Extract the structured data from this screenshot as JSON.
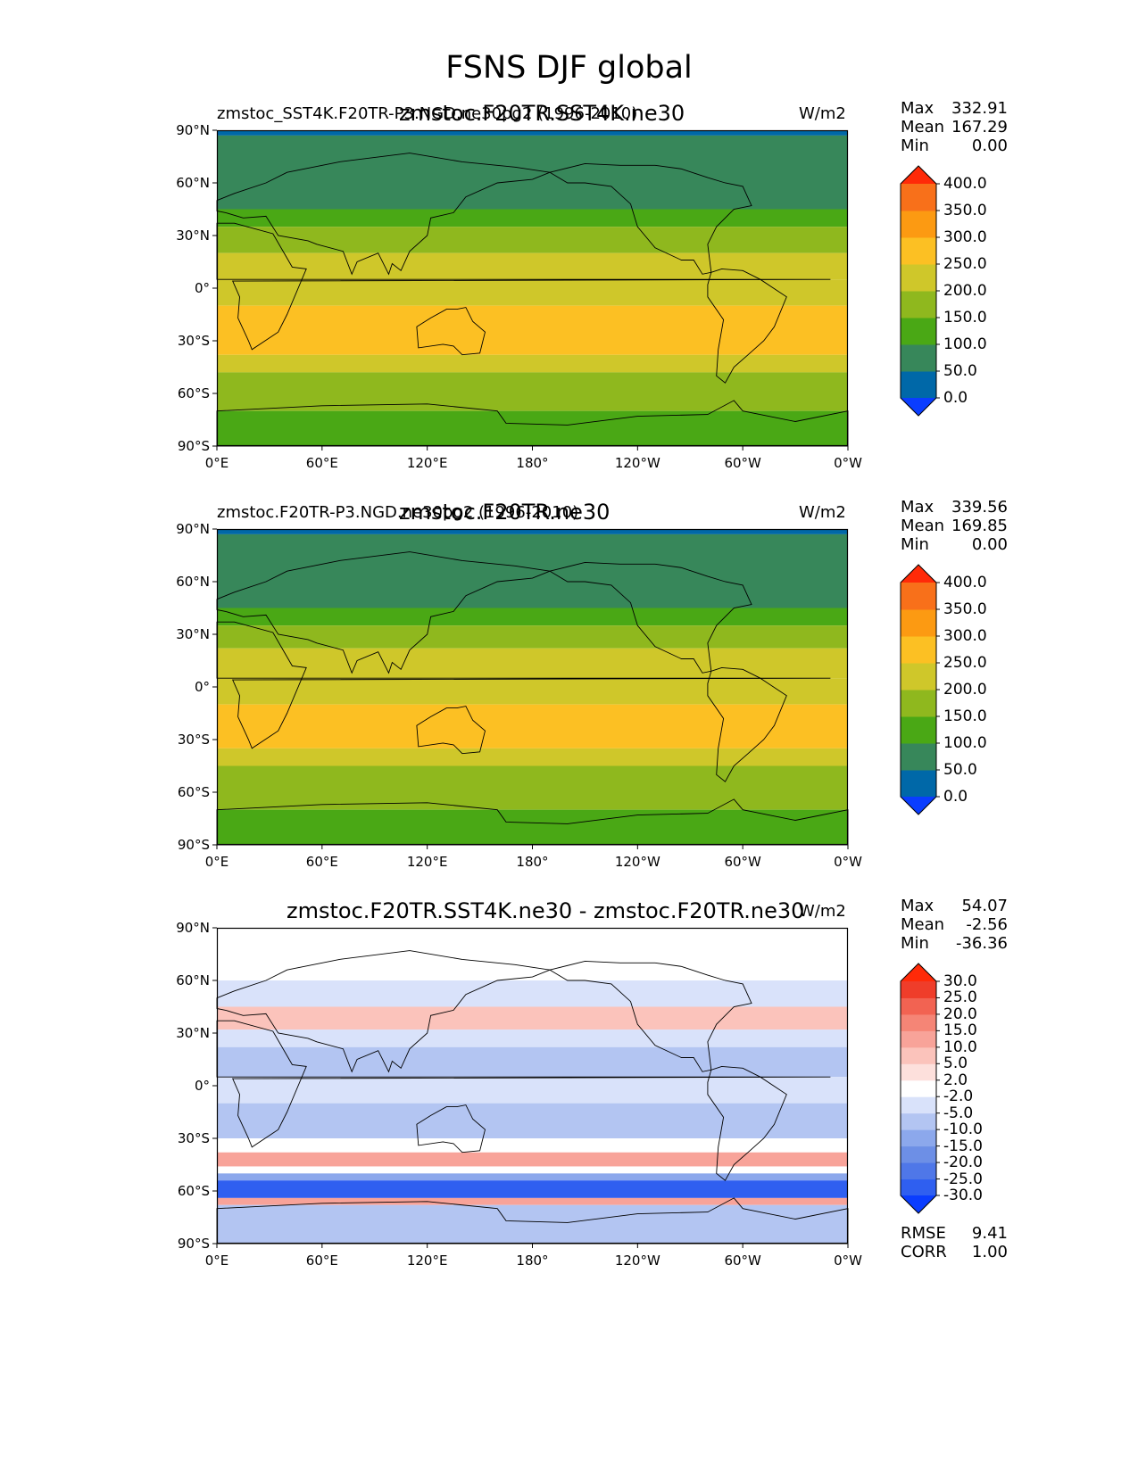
{
  "title": "FSNS DJF global",
  "chart_data": [
    {
      "type": "heatmap",
      "title": "zmstoc.F20TR.SST4K.ne30",
      "left_label": "zmstoc_SST4K.F20TR-P3.NGD.ne30pg2 (1996-2010)",
      "units": "W/m2",
      "stats": [
        {
          "label": "Max",
          "value": "332.91"
        },
        {
          "label": "Mean",
          "value": "167.29"
        },
        {
          "label": "Min",
          "value": "0.00"
        }
      ],
      "colorbar": {
        "levels": [
          "0.0",
          "50.0",
          "100.0",
          "150.0",
          "200.0",
          "250.0",
          "300.0",
          "350.0",
          "400.0"
        ],
        "colors": [
          "#0a3dff",
          "#0068a8",
          "#37875a",
          "#4aa815",
          "#8fb81e",
          "#cfc72a",
          "#fcc023",
          "#fc9a12",
          "#f8701a",
          "#ff2a08"
        ]
      },
      "xticks": [
        "0°E",
        "60°E",
        "120°E",
        "180°",
        "120°W",
        "60°W",
        "0°W"
      ],
      "yticks": [
        "90°N",
        "60°N",
        "30°N",
        "0°",
        "30°S",
        "60°S",
        "90°S"
      ],
      "zonal_bands": [
        {
          "lat": [
            90,
            87
          ],
          "value": 10
        },
        {
          "lat": [
            87,
            45
          ],
          "value": 70
        },
        {
          "lat": [
            45,
            35
          ],
          "value": 120
        },
        {
          "lat": [
            35,
            20
          ],
          "value": 170
        },
        {
          "lat": [
            20,
            5
          ],
          "value": 220
        },
        {
          "lat": [
            5,
            -10
          ],
          "value": 210
        },
        {
          "lat": [
            -10,
            -38
          ],
          "value": 260
        },
        {
          "lat": [
            -38,
            -48
          ],
          "value": 220
        },
        {
          "lat": [
            -48,
            -60
          ],
          "value": 190
        },
        {
          "lat": [
            -60,
            -70
          ],
          "value": 170
        },
        {
          "lat": [
            -70,
            -90
          ],
          "value": 120
        }
      ]
    },
    {
      "type": "heatmap",
      "title": "zmstoc.F20TR.ne30",
      "left_label": "zmstoc.F20TR-P3.NGD.ne30pg2 (1996-2010)",
      "units": "W/m2",
      "stats": [
        {
          "label": "Max",
          "value": "339.56"
        },
        {
          "label": "Mean",
          "value": "169.85"
        },
        {
          "label": "Min",
          "value": "0.00"
        }
      ],
      "colorbar": {
        "levels": [
          "0.0",
          "50.0",
          "100.0",
          "150.0",
          "200.0",
          "250.0",
          "300.0",
          "350.0",
          "400.0"
        ],
        "colors": [
          "#0a3dff",
          "#0068a8",
          "#37875a",
          "#4aa815",
          "#8fb81e",
          "#cfc72a",
          "#fcc023",
          "#fc9a12",
          "#f8701a",
          "#ff2a08"
        ]
      },
      "xticks": [
        "0°E",
        "60°E",
        "120°E",
        "180°",
        "120°W",
        "60°W",
        "0°W"
      ],
      "yticks": [
        "90°N",
        "60°N",
        "30°N",
        "0°",
        "30°S",
        "60°S",
        "90°S"
      ],
      "zonal_bands": [
        {
          "lat": [
            90,
            87
          ],
          "value": 10
        },
        {
          "lat": [
            87,
            45
          ],
          "value": 70
        },
        {
          "lat": [
            45,
            35
          ],
          "value": 120
        },
        {
          "lat": [
            35,
            22
          ],
          "value": 170
        },
        {
          "lat": [
            22,
            5
          ],
          "value": 220
        },
        {
          "lat": [
            5,
            -10
          ],
          "value": 210
        },
        {
          "lat": [
            -10,
            -35
          ],
          "value": 260
        },
        {
          "lat": [
            -35,
            -45
          ],
          "value": 220
        },
        {
          "lat": [
            -45,
            -70
          ],
          "value": 190
        },
        {
          "lat": [
            -70,
            -90
          ],
          "value": 120
        }
      ]
    },
    {
      "type": "heatmap",
      "title": "zmstoc.F20TR.SST4K.ne30 - zmstoc.F20TR.ne30",
      "left_label": "",
      "units": "W/m2",
      "stats": [
        {
          "label": "Max",
          "value": "54.07"
        },
        {
          "label": "Mean",
          "value": "-2.56"
        },
        {
          "label": "Min",
          "value": "-36.36"
        }
      ],
      "extra_stats": [
        {
          "label": "RMSE",
          "value": "9.41"
        },
        {
          "label": "CORR",
          "value": "1.00"
        }
      ],
      "colorbar": {
        "levels": [
          "-30.0",
          "-25.0",
          "-20.0",
          "-15.0",
          "-10.0",
          "-5.0",
          "-2.0",
          "2.0",
          "5.0",
          "10.0",
          "15.0",
          "20.0",
          "25.0",
          "30.0"
        ],
        "colors": [
          "#0a3dff",
          "#2f5ff0",
          "#4f77e8",
          "#6d8fe6",
          "#8ca8ec",
          "#b3c5f2",
          "#d9e2fa",
          "#ffffff",
          "#fde0dc",
          "#fbc3bb",
          "#f8a399",
          "#f58576",
          "#f26352",
          "#ef3d2a",
          "#ff2a08"
        ]
      },
      "xticks": [
        "0°E",
        "60°E",
        "120°E",
        "180°",
        "120°W",
        "60°W",
        "0°W"
      ],
      "yticks": [
        "90°N",
        "60°N",
        "30°N",
        "0°",
        "30°S",
        "60°S",
        "90°S"
      ],
      "zonal_bands": [
        {
          "lat": [
            90,
            60
          ],
          "value": 0
        },
        {
          "lat": [
            60,
            45
          ],
          "value": -5
        },
        {
          "lat": [
            45,
            32
          ],
          "value": 8
        },
        {
          "lat": [
            32,
            22
          ],
          "value": -4
        },
        {
          "lat": [
            22,
            5
          ],
          "value": -8
        },
        {
          "lat": [
            5,
            -10
          ],
          "value": -4
        },
        {
          "lat": [
            -10,
            -30
          ],
          "value": -10
        },
        {
          "lat": [
            -30,
            -38
          ],
          "value": 0
        },
        {
          "lat": [
            -38,
            -46
          ],
          "value": 10
        },
        {
          "lat": [
            -46,
            -50
          ],
          "value": 0
        },
        {
          "lat": [
            -50,
            -54
          ],
          "value": -12
        },
        {
          "lat": [
            -54,
            -64
          ],
          "value": -28
        },
        {
          "lat": [
            -64,
            -68
          ],
          "value": 12
        },
        {
          "lat": [
            -68,
            -90
          ],
          "value": -6
        }
      ]
    }
  ]
}
